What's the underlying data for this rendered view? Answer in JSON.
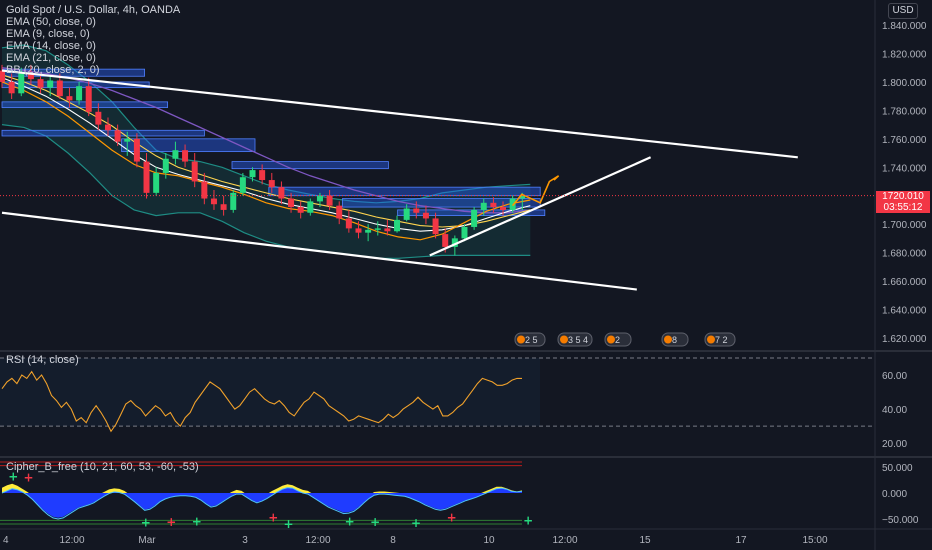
{
  "header": {
    "symbol_line": "Gold Spot / U.S. Dollar, 4h, OANDA",
    "indicators": [
      "EMA (50, close, 0)",
      "EMA (9, close, 0)",
      "EMA (14, close, 0)",
      "EMA (21, close, 0)",
      "BB (20, close, 2, 0)"
    ],
    "currency_badge": "USD"
  },
  "price_tag": {
    "price": "1720.010",
    "countdown": "03:55:12"
  },
  "rsi_legend": "RSI (14, close)",
  "cipher_legend": "Cipher_B_free (10, 21, 60, 53, -60, -53)",
  "event_markers": [
    "2 5",
    "3 5 4",
    "2",
    "8",
    "7 2"
  ],
  "colors": {
    "background": "#131722",
    "up": "#26d97f",
    "down": "#f23645",
    "ema50": "#7e57c2",
    "ema9": "#ff9800",
    "ema14": "#ffffff",
    "ema21": "#ffd54f",
    "bb": "#1e8c84",
    "zone": "#2962ff",
    "rsi": "#f0a12b",
    "cipher_yellow": "#ffeb3b",
    "cipher_blue": "#1f3cff"
  },
  "chart_data": [
    {
      "type": "candlestick",
      "title": "Gold Spot / U.S. Dollar, 4h, OANDA",
      "x_ticks": [
        "4",
        "12:00",
        "Mar",
        "3",
        "12:00",
        "8",
        "10",
        "12:00",
        "15",
        "17",
        "15:00"
      ],
      "y_ticks": [
        1620,
        1640,
        1660,
        1680,
        1700,
        1720,
        1740,
        1760,
        1780,
        1800,
        1820,
        1840
      ],
      "ylim": [
        1615,
        1852
      ],
      "last_price": 1720.01,
      "ohlc": [
        [
          1808,
          1812,
          1796,
          1800
        ],
        [
          1800,
          1806,
          1788,
          1792
        ],
        [
          1792,
          1810,
          1790,
          1806
        ],
        [
          1806,
          1812,
          1798,
          1802
        ],
        [
          1802,
          1806,
          1792,
          1796
        ],
        [
          1796,
          1804,
          1790,
          1801
        ],
        [
          1801,
          1806,
          1788,
          1790
        ],
        [
          1790,
          1796,
          1782,
          1787
        ],
        [
          1787,
          1800,
          1784,
          1797
        ],
        [
          1797,
          1803,
          1776,
          1779
        ],
        [
          1779,
          1785,
          1766,
          1770
        ],
        [
          1770,
          1775,
          1762,
          1766
        ],
        [
          1766,
          1770,
          1755,
          1758
        ],
        [
          1758,
          1765,
          1748,
          1760
        ],
        [
          1760,
          1764,
          1740,
          1744
        ],
        [
          1744,
          1750,
          1718,
          1722
        ],
        [
          1722,
          1740,
          1720,
          1736
        ],
        [
          1736,
          1750,
          1732,
          1746
        ],
        [
          1746,
          1758,
          1742,
          1752
        ],
        [
          1752,
          1756,
          1740,
          1744
        ],
        [
          1744,
          1750,
          1726,
          1730
        ],
        [
          1730,
          1736,
          1714,
          1718
        ],
        [
          1718,
          1724,
          1710,
          1714
        ],
        [
          1714,
          1720,
          1706,
          1710
        ],
        [
          1710,
          1724,
          1708,
          1722
        ],
        [
          1722,
          1736,
          1720,
          1733
        ],
        [
          1733,
          1740,
          1730,
          1738
        ],
        [
          1738,
          1742,
          1728,
          1731
        ],
        [
          1731,
          1736,
          1722,
          1726
        ],
        [
          1726,
          1730,
          1714,
          1718
        ],
        [
          1718,
          1722,
          1708,
          1712
        ],
        [
          1712,
          1716,
          1704,
          1708
        ],
        [
          1708,
          1718,
          1706,
          1716
        ],
        [
          1716,
          1722,
          1712,
          1720
        ],
        [
          1720,
          1724,
          1710,
          1713
        ],
        [
          1713,
          1716,
          1700,
          1704
        ],
        [
          1704,
          1710,
          1694,
          1697
        ],
        [
          1697,
          1702,
          1690,
          1694
        ],
        [
          1694,
          1700,
          1688,
          1696
        ],
        [
          1696,
          1702,
          1692,
          1697
        ],
        [
          1697,
          1703,
          1692,
          1695
        ],
        [
          1695,
          1706,
          1694,
          1703
        ],
        [
          1703,
          1714,
          1702,
          1711
        ],
        [
          1711,
          1716,
          1704,
          1708
        ],
        [
          1708,
          1713,
          1700,
          1704
        ],
        [
          1704,
          1708,
          1690,
          1693
        ],
        [
          1693,
          1697,
          1680,
          1684
        ],
        [
          1684,
          1692,
          1678,
          1690
        ],
        [
          1690,
          1700,
          1688,
          1698
        ],
        [
          1698,
          1712,
          1696,
          1710
        ],
        [
          1710,
          1718,
          1706,
          1715
        ],
        [
          1715,
          1719,
          1708,
          1712
        ],
        [
          1712,
          1716,
          1706,
          1710
        ],
        [
          1710,
          1720,
          1708,
          1718
        ],
        [
          1718,
          1722,
          1710,
          1720
        ]
      ],
      "ema50": [
        1810,
        1808,
        1806,
        1803,
        1799,
        1794,
        1788,
        1782,
        1775,
        1768,
        1761,
        1754,
        1747,
        1740,
        1734,
        1729,
        1724,
        1720,
        1716,
        1713,
        1711,
        1709,
        1708,
        1708,
        1710
      ],
      "ema21": [
        1805,
        1800,
        1794,
        1786,
        1778,
        1769,
        1758,
        1748,
        1740,
        1735,
        1730,
        1726,
        1722,
        1718,
        1715,
        1712,
        1709,
        1705,
        1702,
        1699,
        1698,
        1699,
        1702,
        1706,
        1710
      ],
      "ema14": [
        1803,
        1797,
        1790,
        1781,
        1771,
        1760,
        1749,
        1740,
        1735,
        1731,
        1727,
        1723,
        1718,
        1714,
        1711,
        1708,
        1704,
        1700,
        1697,
        1695,
        1696,
        1699,
        1704,
        1709,
        1713
      ],
      "ema9": [
        1800,
        1794,
        1786,
        1776,
        1764,
        1752,
        1742,
        1736,
        1734,
        1730,
        1726,
        1721,
        1715,
        1711,
        1709,
        1706,
        1701,
        1695,
        1691,
        1689,
        1693,
        1701,
        1709,
        1714,
        1717
      ],
      "bb_upper": [
        1824,
        1826,
        1822,
        1812,
        1800,
        1786,
        1768,
        1752,
        1746,
        1744,
        1740,
        1734,
        1728,
        1724,
        1721,
        1718,
        1716,
        1715,
        1716,
        1718,
        1722,
        1724,
        1726,
        1727,
        1728
      ],
      "bb_lower": [
        1770,
        1768,
        1762,
        1750,
        1736,
        1720,
        1710,
        1706,
        1708,
        1708,
        1702,
        1694,
        1688,
        1684,
        1682,
        1680,
        1678,
        1676,
        1676,
        1677,
        1678,
        1678,
        1678,
        1678,
        1678
      ],
      "zones": [
        {
          "from": 1809,
          "to": 1804,
          "start": 0,
          "end": 31
        },
        {
          "from": 1800,
          "to": 1796,
          "start": 0,
          "end": 32
        },
        {
          "from": 1786,
          "to": 1782,
          "start": 0,
          "end": 36
        },
        {
          "from": 1766,
          "to": 1762,
          "start": 0,
          "end": 44
        },
        {
          "from": 1760,
          "to": 1751,
          "start": 26,
          "end": 55
        },
        {
          "from": 1744,
          "to": 1739,
          "start": 50,
          "end": 84
        },
        {
          "from": 1726,
          "to": 1720,
          "start": 58,
          "end": 117
        },
        {
          "from": 1718,
          "to": 1712,
          "start": 74,
          "end": 117
        },
        {
          "from": 1710,
          "to": 1706,
          "start": 86,
          "end": 118
        }
      ],
      "trendlines": [
        {
          "p1": [
            0,
            1808
          ],
          "p2": [
            173,
            1747
          ]
        },
        {
          "p1": [
            0,
            1708
          ],
          "p2": [
            138,
            1654
          ]
        },
        {
          "p1": [
            93,
            1678
          ],
          "p2": [
            141,
            1747
          ]
        }
      ],
      "projection": [
        [
          111,
          1713
        ],
        [
          113,
          1721
        ],
        [
          117,
          1715
        ],
        [
          119,
          1730
        ],
        [
          121,
          1734
        ],
        [
          120,
          1731
        ]
      ]
    },
    {
      "type": "line",
      "title": "RSI (14, close)",
      "y_ticks": [
        20,
        40,
        60
      ],
      "ylim": [
        16,
        70
      ],
      "bands": [
        30,
        70
      ],
      "values": [
        52,
        56,
        58,
        55,
        60,
        58,
        62,
        57,
        60,
        55,
        48,
        45,
        41,
        44,
        40,
        33,
        35,
        32,
        38,
        42,
        38,
        33,
        27,
        31,
        37,
        43,
        45,
        42,
        40,
        36,
        39,
        42,
        40,
        36,
        38,
        33,
        30,
        35,
        38,
        44,
        48,
        52,
        56,
        54,
        52,
        48,
        44,
        40,
        42,
        46,
        50,
        52,
        49,
        46,
        44,
        43,
        45,
        42,
        38,
        36,
        40,
        44,
        46,
        50,
        48,
        46,
        42,
        40,
        38,
        36,
        33,
        34,
        36,
        35,
        34,
        33,
        32,
        34,
        37,
        35,
        37,
        40,
        42,
        44,
        47,
        44,
        42,
        40,
        42,
        36,
        36,
        38,
        41,
        43,
        47,
        51,
        55,
        58,
        57,
        56,
        54,
        54,
        55,
        57,
        58,
        58
      ]
    },
    {
      "type": "area",
      "title": "Cipher_B_free (10, 21, 60, 53, -60, -53)",
      "y_ticks": [
        50000,
        0,
        -50000
      ],
      "y_tick_labels": [
        "50.000",
        "0.000",
        "−50.000"
      ],
      "ylim": [
        -62,
        62
      ],
      "levels": [
        60,
        53,
        -53,
        -60
      ],
      "wave_yellow": [
        10,
        15,
        18,
        14,
        8,
        2,
        -5,
        -18,
        -30,
        -38,
        -42,
        -40,
        -34,
        -28,
        -22,
        -18,
        -16,
        -14,
        -8,
        -3,
        2,
        7,
        9,
        8,
        4,
        -3,
        -10,
        -18,
        -24,
        -20,
        -14,
        -9,
        -6,
        -4,
        -2,
        -1,
        -1,
        -2,
        -4,
        -9,
        -14,
        -18,
        -16,
        -10,
        -4,
        2,
        6,
        4,
        -3,
        -8,
        -10,
        -7,
        -2,
        4,
        9,
        14,
        17,
        15,
        10,
        6,
        4,
        -2,
        -7,
        -12,
        -18,
        -22,
        -26,
        -28,
        -26,
        -24,
        -18,
        -10,
        -4,
        2,
        3,
        3,
        2,
        1,
        0,
        -2,
        -5,
        -8,
        -12,
        -16,
        -19,
        -22,
        -24,
        -22,
        -18,
        -15,
        -12,
        -10,
        -7,
        -4,
        0,
        4,
        8,
        12,
        12,
        9,
        5,
        3,
        5
      ],
      "wave_blue": [
        0,
        4,
        8,
        6,
        2,
        -4,
        -12,
        -22,
        -32,
        -40,
        -46,
        -48,
        -46,
        -40,
        -34,
        -28,
        -25,
        -22,
        -18,
        -12,
        -6,
        -1,
        2,
        1,
        -2,
        -9,
        -16,
        -24,
        -32,
        -30,
        -24,
        -16,
        -11,
        -8,
        -6,
        -5,
        -5,
        -6,
        -8,
        -13,
        -20,
        -26,
        -24,
        -18,
        -12,
        -6,
        -2,
        -2,
        -8,
        -14,
        -18,
        -15,
        -10,
        -4,
        2,
        7,
        10,
        9,
        4,
        0,
        -2,
        -8,
        -14,
        -20,
        -26,
        -30,
        -34,
        -38,
        -37,
        -34,
        -27,
        -18,
        -10,
        -4,
        -2,
        -2,
        -3,
        -4,
        -5,
        -6,
        -9,
        -13,
        -17,
        -22,
        -26,
        -30,
        -32,
        -30,
        -26,
        -22,
        -18,
        -14,
        -11,
        -8,
        -4,
        0,
        4,
        8,
        9,
        7,
        3,
        2,
        3
      ],
      "buy_dots": [
        {
          "i": 2,
          "v": 32
        },
        {
          "i": 28,
          "v": -57
        },
        {
          "i": 38,
          "v": -55
        },
        {
          "i": 56,
          "v": -60
        },
        {
          "i": 68,
          "v": -55
        },
        {
          "i": 73,
          "v": -56
        },
        {
          "i": 81,
          "v": -58
        },
        {
          "i": 103,
          "v": -53
        }
      ],
      "sell_dots": [
        {
          "i": 5,
          "v": 30
        },
        {
          "i": 33,
          "v": -56
        },
        {
          "i": 53,
          "v": -47
        },
        {
          "i": 88,
          "v": -47
        }
      ]
    }
  ]
}
